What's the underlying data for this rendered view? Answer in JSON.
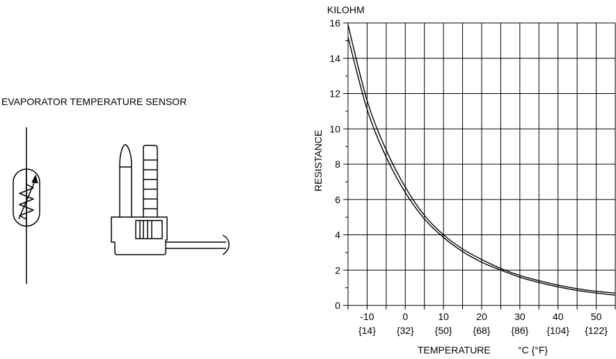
{
  "sensor_label": "EVAPORATOR TEMPERATURE SENSOR",
  "chart_data": {
    "type": "line",
    "ylabel": "RESISTANCE",
    "yunit": "KILOHM",
    "xlabel": "TEMPERATURE",
    "xunit": "°C {°F}",
    "xlim": [
      -15,
      55
    ],
    "ylim": [
      0,
      16
    ],
    "grid": true,
    "x_ticks": [
      {
        "c": "-10",
        "f": "{14}"
      },
      {
        "c": "0",
        "f": "{32}"
      },
      {
        "c": "10",
        "f": "{50}"
      },
      {
        "c": "20",
        "f": "{68}"
      },
      {
        "c": "30",
        "f": "{86}"
      },
      {
        "c": "40",
        "f": "{104}"
      },
      {
        "c": "50",
        "f": "{122}"
      }
    ],
    "y_ticks": [
      "0",
      "2",
      "4",
      "6",
      "8",
      "10",
      "12",
      "14",
      "16"
    ],
    "series": [
      {
        "x": [
          -15,
          -10,
          -5,
          0,
          5,
          10,
          15,
          20,
          25,
          30,
          35,
          40,
          45,
          50,
          55
        ],
        "y": [
          15.9,
          11.6,
          8.8,
          6.7,
          5.1,
          4.0,
          3.2,
          2.6,
          2.1,
          1.7,
          1.4,
          1.15,
          0.95,
          0.8,
          0.7
        ]
      },
      {
        "x": [
          -15,
          -10,
          -5,
          0,
          5,
          10,
          15,
          20,
          25,
          30,
          35,
          40,
          45,
          50,
          55
        ],
        "y": [
          15.2,
          11.1,
          8.4,
          6.4,
          4.9,
          3.85,
          3.05,
          2.45,
          2.0,
          1.6,
          1.3,
          1.05,
          0.85,
          0.7,
          0.58
        ]
      }
    ]
  }
}
